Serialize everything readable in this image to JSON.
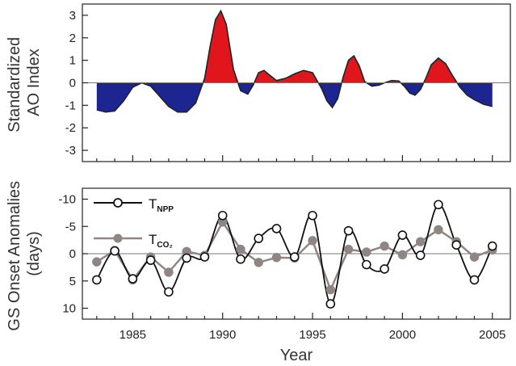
{
  "colors": {
    "positive_fill": "#e0161c",
    "negative_fill": "#1c2590",
    "npp_line": "#111111",
    "co2_line": "#8f8684",
    "zero_line": "#777777",
    "axis": "#222222"
  },
  "chart_data": [
    {
      "type": "area",
      "ylabel_lines": [
        "Standardized",
        "AO Index"
      ],
      "xlim": [
        1982.2,
        2006.0
      ],
      "ylim": [
        -3.5,
        3.5
      ],
      "yticks": [
        3,
        2,
        1,
        0,
        -1,
        -2,
        -3
      ],
      "x": [
        1983.0,
        1983.5,
        1984.0,
        1984.5,
        1985.0,
        1985.5,
        1986.0,
        1986.5,
        1987.0,
        1987.5,
        1988.0,
        1988.5,
        1989.0,
        1989.3,
        1989.6,
        1989.9,
        1990.2,
        1990.6,
        1991.0,
        1991.4,
        1991.7,
        1992.0,
        1992.3,
        1992.6,
        1993.0,
        1993.5,
        1994.0,
        1994.5,
        1995.0,
        1995.5,
        1995.8,
        1996.1,
        1996.4,
        1996.7,
        1997.0,
        1997.3,
        1997.6,
        1997.9,
        1998.3,
        1998.7,
        1999.0,
        1999.4,
        1999.8,
        2000.1,
        2000.4,
        2000.7,
        2001.0,
        2001.3,
        2001.6,
        2002.0,
        2002.4,
        2002.8,
        2003.2,
        2003.6,
        2004.0,
        2004.5,
        2005.0
      ],
      "values": [
        -1.2,
        -1.3,
        -1.25,
        -0.8,
        -0.2,
        0.0,
        -0.15,
        -0.6,
        -1.05,
        -1.3,
        -1.3,
        -0.9,
        0.2,
        1.6,
        2.8,
        3.2,
        2.6,
        0.6,
        -0.35,
        -0.5,
        -0.1,
        0.45,
        0.55,
        0.35,
        0.1,
        0.2,
        0.4,
        0.55,
        0.45,
        -0.25,
        -0.8,
        -1.1,
        -0.7,
        0.25,
        1.0,
        1.2,
        0.75,
        0.05,
        -0.15,
        -0.1,
        0.0,
        0.1,
        0.08,
        -0.15,
        -0.45,
        -0.55,
        -0.3,
        0.2,
        0.8,
        1.1,
        0.85,
        0.3,
        -0.2,
        -0.55,
        -0.75,
        -0.95,
        -1.05
      ]
    },
    {
      "type": "line",
      "ylabel_lines": [
        "GS Onset Anomalies",
        "(days)"
      ],
      "xlabel": "Year",
      "xlim": [
        1982.2,
        2006.0
      ],
      "ylim": [
        12,
        -12
      ],
      "ytick_values": [
        -10,
        -5,
        0,
        5,
        10
      ],
      "ytick_labels": [
        "-10",
        "-5",
        "0",
        "5",
        "10"
      ],
      "xtick_values": [
        1985,
        1990,
        1995,
        2000,
        2005
      ],
      "xtick_labels": [
        "1985",
        "1990",
        "1995",
        "2000",
        "2005"
      ],
      "x": [
        1983,
        1984,
        1985,
        1986,
        1987,
        1988,
        1989,
        1990,
        1991,
        1992,
        1993,
        1994,
        1995,
        1996,
        1997,
        1998,
        1999,
        2000,
        2001,
        2002,
        2003,
        2004,
        2005
      ],
      "series": [
        {
          "name": "T",
          "name_sub": "NPP",
          "values": [
            4.8,
            -0.5,
            4.6,
            1.2,
            7.0,
            0.8,
            0.6,
            -7.0,
            1.0,
            -2.8,
            -4.6,
            0.6,
            -7.0,
            9.2,
            -4.2,
            2.0,
            2.8,
            -3.4,
            0.3,
            -9.0,
            -1.6,
            4.8,
            -1.4
          ]
        },
        {
          "name": "T",
          "name_sub": "CO₂",
          "values": [
            1.5,
            -0.6,
            4.8,
            0.6,
            3.4,
            -0.4,
            0.3,
            -5.8,
            -0.8,
            1.6,
            0.7,
            0.8,
            -2.4,
            6.6,
            -0.8,
            -0.3,
            -1.4,
            0.2,
            -2.2,
            -4.4,
            -2.2,
            0.6,
            -0.7
          ]
        }
      ]
    }
  ]
}
